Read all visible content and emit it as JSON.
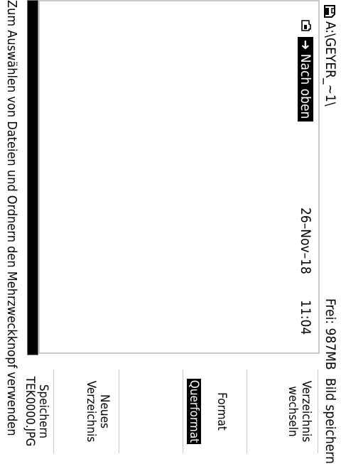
{
  "titlebar": {
    "path": "A:\\GEYER_~1\\",
    "free": "Frei: 987MB",
    "title": "Bild speichern"
  },
  "file_list": {
    "rows": [
      {
        "name": "➜ Nach oben",
        "date": "26–Nov–18",
        "time": "11:04",
        "selected": true
      }
    ]
  },
  "menu": {
    "change_dir": "Verzeichnis\nwechseln",
    "format_label": "Format",
    "format_value": "Querformat",
    "new_dir": "Neues\nVerzeichnis",
    "save": "Speichern\nTEK0000.JPG"
  },
  "help": {
    "text": "Zum Auswählen von Dateien und Ordnern den Mehrzweckknopf  verwenden"
  },
  "colors": {
    "background": "#ffffff",
    "foreground": "#000000",
    "border": "#c8c8c8",
    "selection_bg": "#000000",
    "selection_fg": "#ffffff"
  },
  "icons": {
    "title": "disk-icon",
    "row": "folder-icon"
  }
}
